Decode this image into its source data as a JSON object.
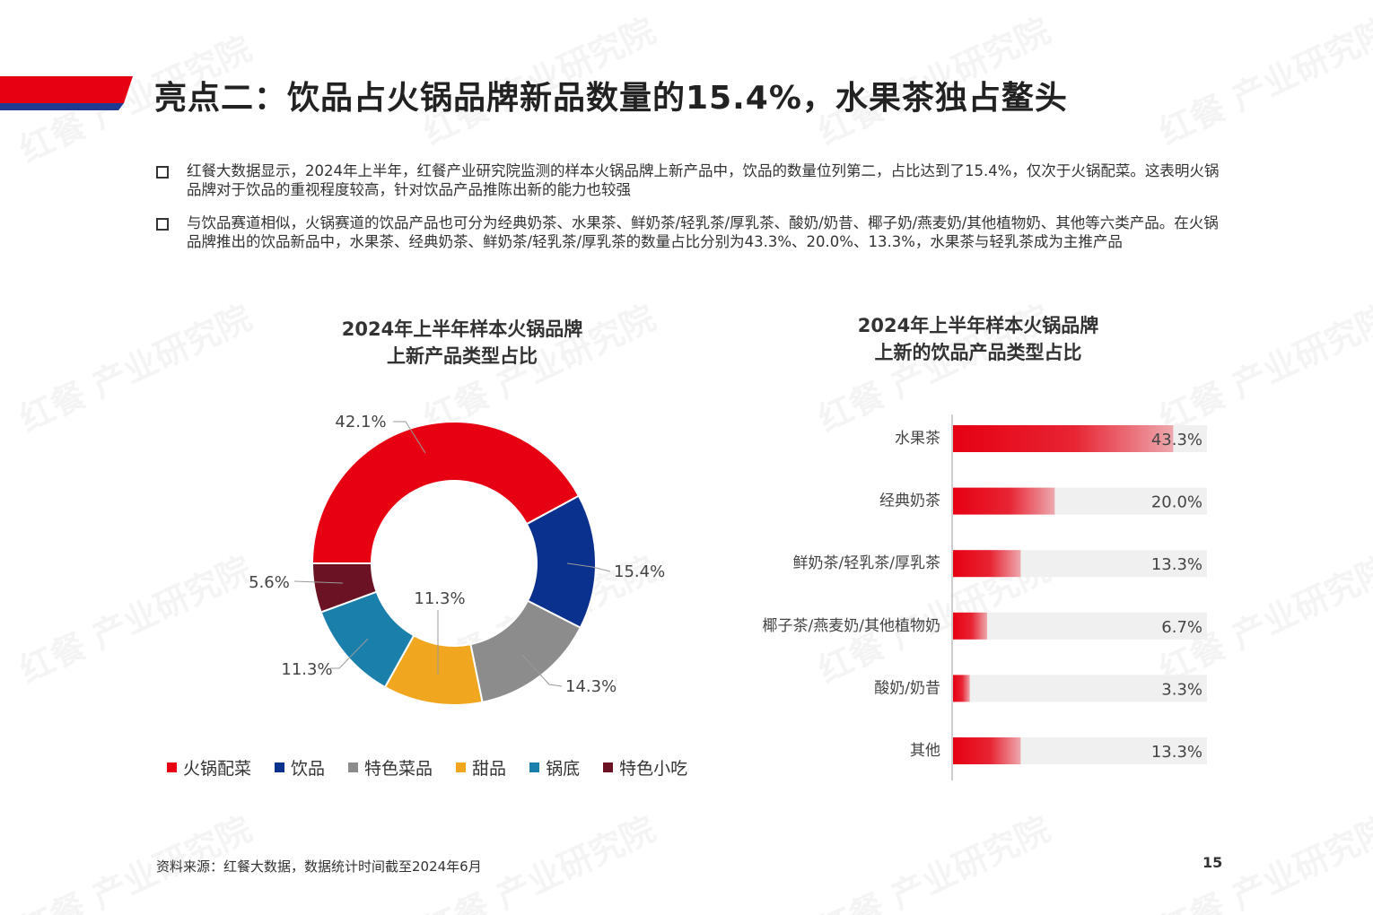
{
  "header": {
    "title": "亮点二：饮品占火锅品牌新品数量的15.4%，水果茶独占鳌头",
    "accent_red": "#e60012",
    "accent_blue": "#1f3a93"
  },
  "bullets": [
    "红餐大数据显示，2024年上半年，红餐产业研究院监测的样本火锅品牌上新产品中，饮品的数量位列第二，占比达到了15.4%，仅次于火锅配菜。这表明火锅品牌对于饮品的重视程度较高，针对饮品产品推陈出新的能力也较强",
    "与饮品赛道相似，火锅赛道的饮品产品也可分为经典奶茶、水果茶、鲜奶茶/轻乳茶/厚乳茶、酸奶/奶昔、椰子奶/燕麦奶/其他植物奶、其他等六类产品。在火锅品牌推出的饮品新品中，水果茶、经典奶茶、鲜奶茶/轻乳茶/厚乳茶的数量占比分别为43.3%、20.0%、13.3%，水果茶与轻乳茶成为主推产品"
  ],
  "watermark": "红餐 产业研究院",
  "chart_data": [
    {
      "type": "pie",
      "title_lines": [
        "2024年上半年样本火锅品牌",
        "上新产品类型占比"
      ],
      "donut": true,
      "legend_position": "bottom",
      "categories": [
        "火锅配菜",
        "饮品",
        "特色菜品",
        "甜品",
        "锅底",
        "特色小吃"
      ],
      "values": [
        42.1,
        15.4,
        14.3,
        11.3,
        11.3,
        5.6
      ],
      "labels": [
        "42.1%",
        "15.4%",
        "14.3%",
        "11.3%",
        "11.3%",
        "5.6%"
      ],
      "colors": [
        "#e60012",
        "#0b318f",
        "#8c8c8c",
        "#f0a71f",
        "#1b7fac",
        "#6b1224"
      ]
    },
    {
      "type": "bar",
      "orientation": "horizontal",
      "title_lines": [
        "2024年上半年样本火锅品牌",
        "上新的饮品产品类型占比"
      ],
      "categories": [
        "水果茶",
        "经典奶茶",
        "鲜奶茶/轻乳茶/厚乳茶",
        "椰子茶/燕麦奶/其他植物奶",
        "酸奶/奶昔",
        "其他"
      ],
      "values": [
        43.3,
        20.0,
        13.3,
        6.7,
        3.3,
        13.3
      ],
      "labels": [
        "43.3%",
        "20.0%",
        "13.3%",
        "6.7%",
        "3.3%",
        "13.3%"
      ],
      "xlim": [
        0,
        60
      ],
      "bar_color": "#e60012",
      "track_color": "#f0f0f0"
    }
  ],
  "footer": {
    "source": "资料来源：红餐大数据，数据统计时间截至2024年6月",
    "page_number": "15"
  }
}
